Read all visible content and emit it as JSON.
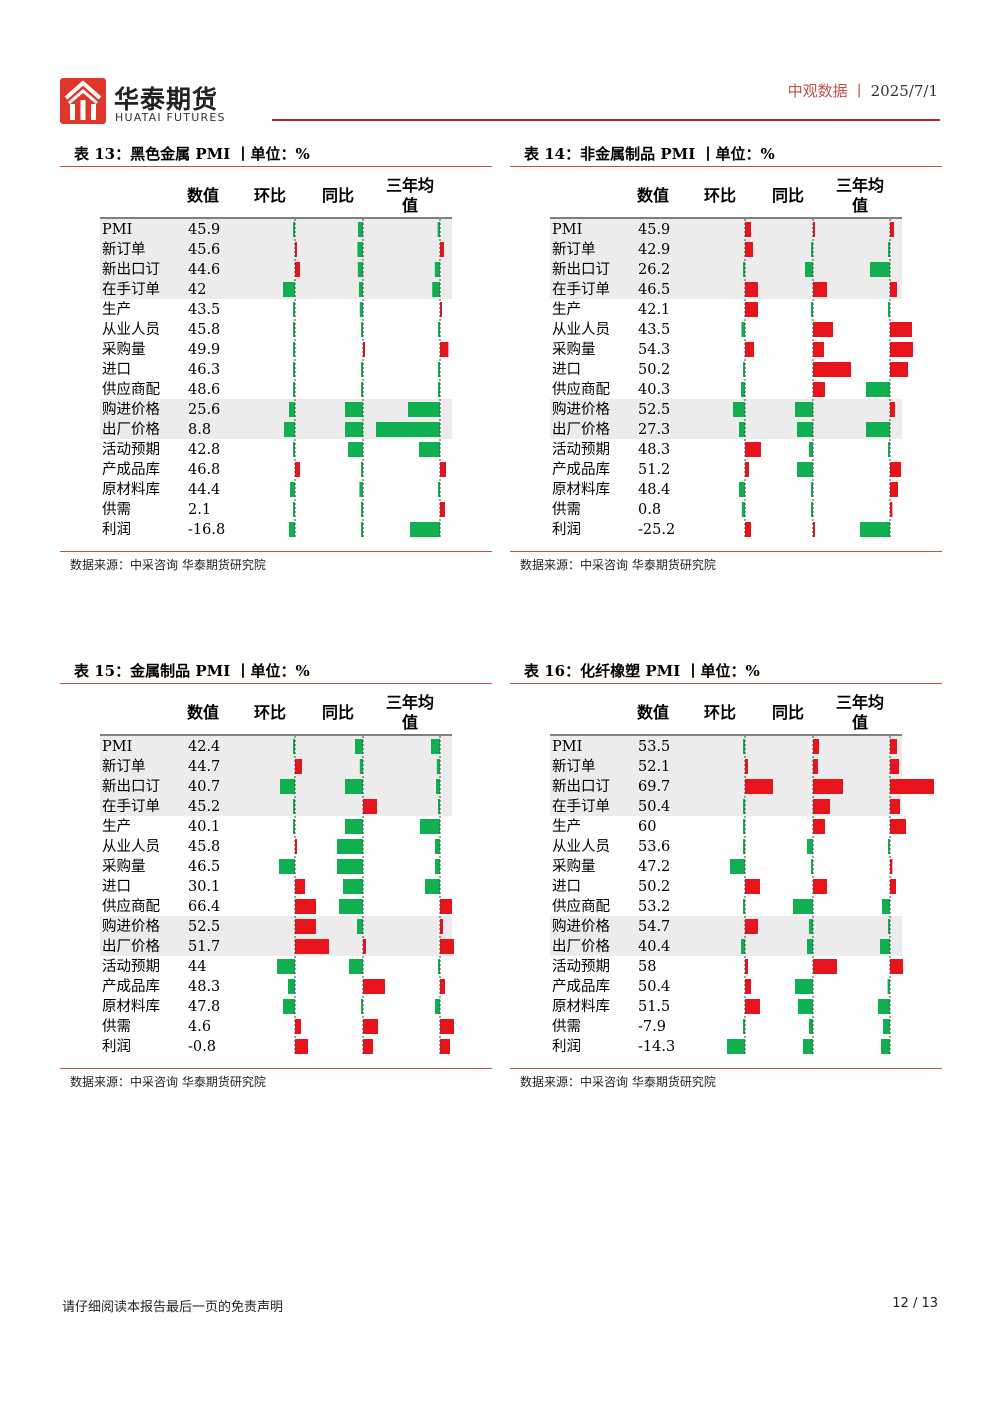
{
  "brand": {
    "name_cn": "华泰期货",
    "name_en": "HUATAI FUTURES"
  },
  "header": {
    "section": "中观数据",
    "separator": "丨",
    "date": "2025/7/1"
  },
  "colors": {
    "pos": "#e8141b",
    "neg": "#10b050",
    "stripe": "#ececec",
    "accent": "#c0504d"
  },
  "tables": [
    {
      "title": "表 13：黑色金属 PMI 丨单位：%",
      "source": "数据来源：中采咨询   华泰期货研究院",
      "columns": [
        "数值",
        "环比",
        "同比",
        "三年均值"
      ],
      "scale": 2.0,
      "rows": [
        {
          "label": "PMI",
          "value": "45.9",
          "mom": -0.3,
          "yoy": -2.5,
          "avg": -1.2
        },
        {
          "label": "新订单",
          "value": "45.6",
          "mom": 0.4,
          "yoy": -2.8,
          "avg": 2.0
        },
        {
          "label": "新出口订",
          "value": "44.6",
          "mom": 2.5,
          "yoy": -2.6,
          "avg": -2.6
        },
        {
          "label": "在手订单",
          "value": "42",
          "mom": -6.0,
          "yoy": -2.0,
          "avg": -3.9
        },
        {
          "label": "生产",
          "value": "43.5",
          "mom": -0.4,
          "yoy": -1.6,
          "avg": 0.4
        },
        {
          "label": "从业人员",
          "value": "45.8",
          "mom": -0.6,
          "yoy": -0.4,
          "avg": -0.4
        },
        {
          "label": "采购量",
          "value": "49.9",
          "mom": -0.4,
          "yoy": 0.4,
          "avg": 4.2
        },
        {
          "label": "进口",
          "value": "46.3",
          "mom": -0.8,
          "yoy": -0.4,
          "avg": -0.4
        },
        {
          "label": "供应商配",
          "value": "48.6",
          "mom": -1.0,
          "yoy": -0.6,
          "avg": -0.6
        },
        {
          "label": "购进价格",
          "value": "25.6",
          "mom": -3.0,
          "yoy": -9.0,
          "avg": -16.0
        },
        {
          "label": "出厂价格",
          "value": "8.8",
          "mom": -5.5,
          "yoy": -9.0,
          "avg": -32.0
        },
        {
          "label": "活动预期",
          "value": "42.8",
          "mom": -0.3,
          "yoy": -7.5,
          "avg": -10.5
        },
        {
          "label": "产成品库",
          "value": "46.8",
          "mom": 2.5,
          "yoy": -0.4,
          "avg": 3.0
        },
        {
          "label": "原材料库",
          "value": "44.4",
          "mom": -2.5,
          "yoy": -1.8,
          "avg": -0.9
        },
        {
          "label": "供需",
          "value": "2.1",
          "mom": -0.6,
          "yoy": -0.4,
          "avg": 2.5
        },
        {
          "label": "利润",
          "value": "-16.8",
          "mom": -3.0,
          "yoy": -0.6,
          "avg": -15.0
        }
      ]
    },
    {
      "title": "表 14：非金属制品 PMI 丨单位：%",
      "source": "数据来源：中采咨询   华泰期货研究院",
      "columns": [
        "数值",
        "环比",
        "同比",
        "三年均值"
      ],
      "scale": 2.0,
      "rows": [
        {
          "label": "PMI",
          "value": "45.9",
          "mom": 3.0,
          "yoy": 0.6,
          "avg": 2.0
        },
        {
          "label": "新订单",
          "value": "42.9",
          "mom": 4.0,
          "yoy": -0.6,
          "avg": -0.4
        },
        {
          "label": "新出口订",
          "value": "26.2",
          "mom": -1.0,
          "yoy": -4.0,
          "avg": -10.0
        },
        {
          "label": "在手订单",
          "value": "46.5",
          "mom": 6.5,
          "yoy": 7.0,
          "avg": 3.5
        },
        {
          "label": "生产",
          "value": "42.1",
          "mom": 6.5,
          "yoy": -0.4,
          "avg": -1.0
        },
        {
          "label": "从业人员",
          "value": "43.5",
          "mom": -1.8,
          "yoy": 10.0,
          "avg": 11.0
        },
        {
          "label": "采购量",
          "value": "54.3",
          "mom": 4.5,
          "yoy": 5.5,
          "avg": 11.5
        },
        {
          "label": "进口",
          "value": "50.2",
          "mom": -0.6,
          "yoy": 19.0,
          "avg": 9.0
        },
        {
          "label": "供应商配",
          "value": "40.3",
          "mom": -2.0,
          "yoy": 6.0,
          "avg": -12.0
        },
        {
          "label": "购进价格",
          "value": "52.5",
          "mom": -6.0,
          "yoy": -9.0,
          "avg": 2.5
        },
        {
          "label": "出厂价格",
          "value": "27.3",
          "mom": -3.0,
          "yoy": -8.0,
          "avg": -12.0
        },
        {
          "label": "活动预期",
          "value": "48.3",
          "mom": 8.0,
          "yoy": -2.0,
          "avg": -0.4
        },
        {
          "label": "产成品库",
          "value": "51.2",
          "mom": 2.0,
          "yoy": -8.0,
          "avg": 5.5
        },
        {
          "label": "原材料库",
          "value": "48.4",
          "mom": -3.0,
          "yoy": -0.6,
          "avg": 4.0
        },
        {
          "label": "供需",
          "value": "0.8",
          "mom": -1.6,
          "yoy": -0.6,
          "avg": 1.2
        },
        {
          "label": "利润",
          "value": "-25.2",
          "mom": 3.0,
          "yoy": 1.0,
          "avg": -15.0
        }
      ]
    },
    {
      "title": "表 15：金属制品 PMI 丨单位：%",
      "source": "数据来源：中采咨询   华泰期货研究院",
      "columns": [
        "数值",
        "环比",
        "同比",
        "三年均值"
      ],
      "scale": 2.0,
      "rows": [
        {
          "label": "PMI",
          "value": "42.4",
          "mom": -0.8,
          "yoy": -4.0,
          "avg": -4.5
        },
        {
          "label": "新订单",
          "value": "44.7",
          "mom": 3.5,
          "yoy": -1.6,
          "avg": -1.6
        },
        {
          "label": "新出口订",
          "value": "40.7",
          "mom": -7.5,
          "yoy": -9.0,
          "avg": -2.0
        },
        {
          "label": "在手订单",
          "value": "45.2",
          "mom": -0.4,
          "yoy": 7.0,
          "avg": -0.4
        },
        {
          "label": "生产",
          "value": "40.1",
          "mom": -0.6,
          "yoy": -9.0,
          "avg": -10.0
        },
        {
          "label": "从业人员",
          "value": "45.8",
          "mom": 0.4,
          "yoy": -13.0,
          "avg": -2.5
        },
        {
          "label": "采购量",
          "value": "46.5",
          "mom": -8.0,
          "yoy": -13.0,
          "avg": -2.5
        },
        {
          "label": "进口",
          "value": "30.1",
          "mom": 5.0,
          "yoy": -10.0,
          "avg": -7.5
        },
        {
          "label": "供应商配",
          "value": "66.4",
          "mom": 10.5,
          "yoy": -12.0,
          "avg": 6.0
        },
        {
          "label": "购进价格",
          "value": "52.5",
          "mom": 10.5,
          "yoy": -3.0,
          "avg": 1.5
        },
        {
          "label": "出厂价格",
          "value": "51.7",
          "mom": 17.0,
          "yoy": 1.5,
          "avg": 7.0
        },
        {
          "label": "活动预期",
          "value": "44",
          "mom": -9.0,
          "yoy": -7.0,
          "avg": -0.4
        },
        {
          "label": "产成品库",
          "value": "48.3",
          "mom": -3.5,
          "yoy": 11.0,
          "avg": 2.5
        },
        {
          "label": "原材料库",
          "value": "47.8",
          "mom": -6.0,
          "yoy": -0.4,
          "avg": -2.5
        },
        {
          "label": "供需",
          "value": "4.6",
          "mom": 3.0,
          "yoy": 7.5,
          "avg": 7.0
        },
        {
          "label": "利润",
          "value": "-0.8",
          "mom": 6.5,
          "yoy": 5.0,
          "avg": 5.0
        }
      ]
    },
    {
      "title": "表 16：化纤橡塑 PMI 丨单位：%",
      "source": "数据来源：中采咨询   华泰期货研究院",
      "columns": [
        "数值",
        "环比",
        "同比",
        "三年均值"
      ],
      "scale": 2.0,
      "rows": [
        {
          "label": "PMI",
          "value": "53.5",
          "mom": -0.4,
          "yoy": 3.0,
          "avg": 3.5
        },
        {
          "label": "新订单",
          "value": "52.1",
          "mom": 1.5,
          "yoy": 2.5,
          "avg": 4.5
        },
        {
          "label": "新出口订",
          "value": "69.7",
          "mom": 14.0,
          "yoy": 15.0,
          "avg": 22.0
        },
        {
          "label": "在手订单",
          "value": "50.4",
          "mom": -0.4,
          "yoy": 8.5,
          "avg": 5.0
        },
        {
          "label": "生产",
          "value": "60",
          "mom": -0.6,
          "yoy": 6.0,
          "avg": 8.0
        },
        {
          "label": "从业人员",
          "value": "53.6",
          "mom": -0.6,
          "yoy": -3.0,
          "avg": -0.6
        },
        {
          "label": "采购量",
          "value": "47.2",
          "mom": -7.5,
          "yoy": -0.8,
          "avg": 1.2
        },
        {
          "label": "进口",
          "value": "50.2",
          "mom": 7.5,
          "yoy": 7.0,
          "avg": 3.0
        },
        {
          "label": "供应商配",
          "value": "53.2",
          "mom": -0.4,
          "yoy": -10.0,
          "avg": -4.0
        },
        {
          "label": "购进价格",
          "value": "54.7",
          "mom": 6.5,
          "yoy": -2.0,
          "avg": -0.4
        },
        {
          "label": "出厂价格",
          "value": "40.4",
          "mom": -2.0,
          "yoy": -3.0,
          "avg": -5.0
        },
        {
          "label": "活动预期",
          "value": "58",
          "mom": 1.5,
          "yoy": 12.0,
          "avg": 6.5
        },
        {
          "label": "产成品库",
          "value": "50.4",
          "mom": 3.0,
          "yoy": -9.0,
          "avg": -1.2
        },
        {
          "label": "原材料库",
          "value": "51.5",
          "mom": 7.5,
          "yoy": -7.5,
          "avg": -6.0
        },
        {
          "label": "供需",
          "value": "-7.9",
          "mom": -0.6,
          "yoy": -2.0,
          "avg": -3.5
        },
        {
          "label": "利润",
          "value": "-14.3",
          "mom": -9.0,
          "yoy": -5.0,
          "avg": -4.5
        }
      ]
    }
  ],
  "footer": {
    "disclaimer": "请仔细阅读本报告最后一页的免责声明",
    "page": "12 / 13"
  }
}
